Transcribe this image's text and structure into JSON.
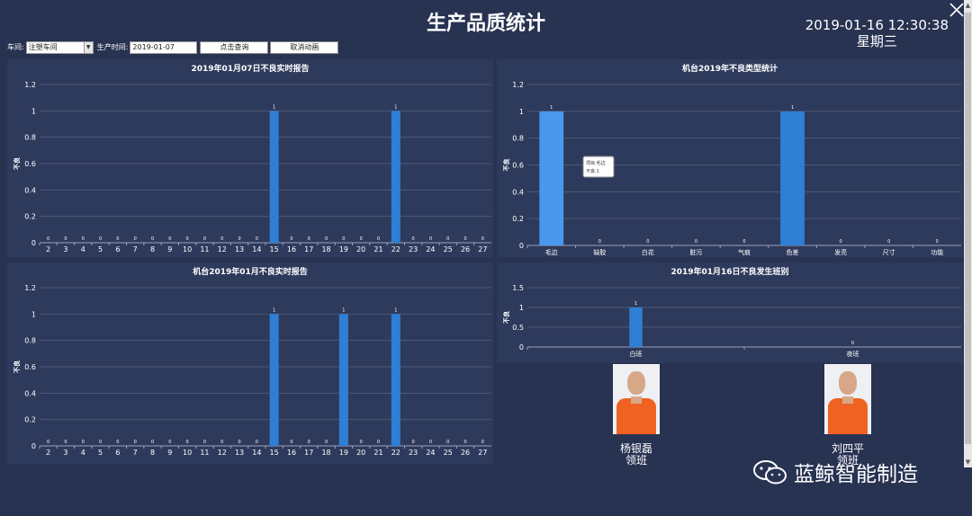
{
  "page": {
    "title": "生产品质统计",
    "datetime": "2019-01-16 12:30:38",
    "weekday": "星期三"
  },
  "filters": {
    "workshop_label": "车间:",
    "workshop_value": "注塑车间",
    "date_label": "生产时间:",
    "date_value": "2019-01-07",
    "query_button": "点击查询",
    "cancel_button": "取消动画"
  },
  "charts": {
    "c1": {
      "title": "2019年01月07日不良实时报告"
    },
    "c2": {
      "title": "机台2019年不良类型统计"
    },
    "c3": {
      "title": "机台2019年01月不良实时报告"
    },
    "c4": {
      "title": "2019年01月16日不良发生班别"
    }
  },
  "tooltip": {
    "line1": "项目:毛边",
    "line2": "不良:1"
  },
  "people": [
    {
      "name": "杨银磊",
      "role": "领班"
    },
    {
      "name": "刘四平",
      "role": "领班"
    }
  ],
  "watermark": {
    "text": "蓝鲸智能制造"
  },
  "colors": {
    "background": "#283352",
    "panel": "#2e3a5c",
    "bar": "#2f7fd4",
    "bar_highlight": "#4a98ec",
    "grid": "#4d5877",
    "photo_shirt": "#f06222"
  },
  "icons": {
    "close": "close-icon",
    "wechat": "wechat-icon",
    "dropdown": "chevron-down-icon"
  },
  "chart_data": [
    {
      "type": "bar",
      "title": "2019年01月07日不良实时报告",
      "ylabel": "不良",
      "ylim": [
        0,
        1.2
      ],
      "yticks": [
        0,
        0.2,
        0.4,
        0.6,
        0.8,
        1,
        1.2
      ],
      "categories": [
        "2",
        "3",
        "4",
        "5",
        "6",
        "7",
        "8",
        "9",
        "10",
        "11",
        "12",
        "13",
        "14",
        "15",
        "16",
        "17",
        "18",
        "19",
        "20",
        "21",
        "22",
        "23",
        "24",
        "25",
        "26",
        "27"
      ],
      "values": [
        0,
        0,
        0,
        0,
        0,
        0,
        0,
        0,
        0,
        0,
        0,
        0,
        0,
        1,
        0,
        0,
        0,
        0,
        0,
        0,
        1,
        0,
        0,
        0,
        0,
        0
      ]
    },
    {
      "type": "bar",
      "title": "机台2019年不良类型统计",
      "ylabel": "不良",
      "ylim": [
        0,
        1.2
      ],
      "yticks": [
        0,
        0.2,
        0.4,
        0.6,
        0.8,
        1,
        1.2
      ],
      "categories": [
        "毛边",
        "缺胶",
        "白花",
        "脏污",
        "气痕",
        "色差",
        "发亮",
        "尺寸",
        "功能"
      ],
      "values": [
        1,
        0,
        0,
        0,
        0,
        1,
        0,
        0,
        0
      ]
    },
    {
      "type": "bar",
      "title": "机台2019年01月不良实时报告",
      "ylabel": "不良",
      "ylim": [
        0,
        1.2
      ],
      "yticks": [
        0,
        0.2,
        0.4,
        0.6,
        0.8,
        1,
        1.2
      ],
      "categories": [
        "2",
        "3",
        "4",
        "5",
        "6",
        "7",
        "8",
        "9",
        "10",
        "11",
        "12",
        "13",
        "14",
        "15",
        "16",
        "17",
        "18",
        "19",
        "20",
        "21",
        "22",
        "23",
        "24",
        "25",
        "26",
        "27"
      ],
      "values": [
        0,
        0,
        0,
        0,
        0,
        0,
        0,
        0,
        0,
        0,
        0,
        0,
        0,
        1,
        0,
        0,
        0,
        1,
        0,
        0,
        1,
        0,
        0,
        0,
        0,
        0
      ]
    },
    {
      "type": "bar",
      "title": "2019年01月16日不良发生班别",
      "ylabel": "不良",
      "ylim": [
        0,
        1.5
      ],
      "yticks": [
        0,
        0.5,
        1,
        1.5
      ],
      "categories": [
        "白班",
        "夜班"
      ],
      "values": [
        1,
        0
      ]
    }
  ]
}
